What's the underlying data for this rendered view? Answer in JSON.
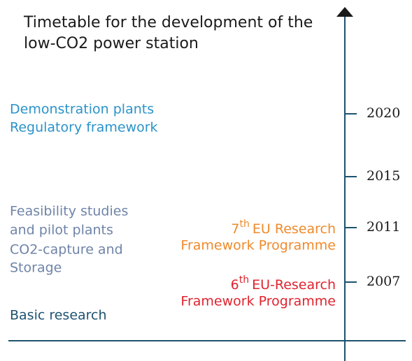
{
  "title": [
    "Timetable for the development of the",
    "low-CO2 power station"
  ],
  "years": [
    "2020",
    "2015",
    "2011",
    "2007"
  ],
  "milestones": [
    {
      "lines": [
        "Demonstration plants",
        "Regulatory framework"
      ]
    },
    {
      "lines": [
        "Feasibility studies",
        "and pilot plants",
        "CO2-capture and",
        "Storage"
      ]
    },
    {
      "lines": [
        "Basic research"
      ]
    }
  ],
  "programmes": [
    {
      "ordinal": "7",
      "suffix": "th",
      "name": "EU Research",
      "line2": "Framework Programme"
    },
    {
      "ordinal": "6",
      "suffix": "th",
      "name": "EU-Research",
      "line2": "Framework Programme"
    }
  ]
}
